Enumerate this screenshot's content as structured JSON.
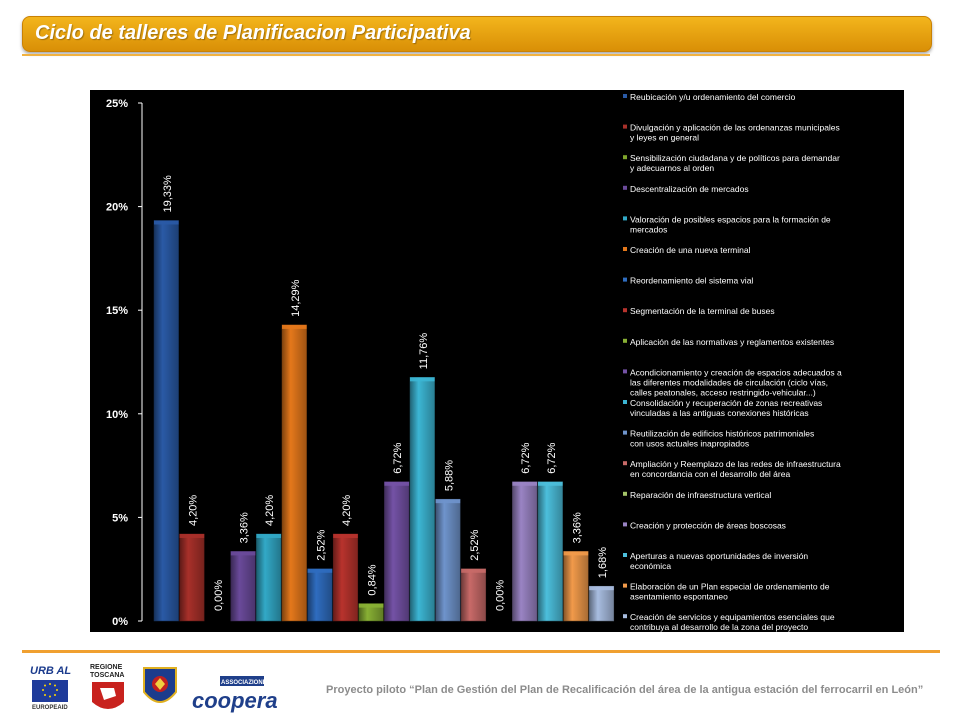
{
  "title": "Ciclo de talleres de Planificacion Participativa",
  "footer": {
    "prefix": "Proyecto piloto",
    "quote": "“Plan de Gestión del Plan de Recalificación del área de la antigua estación del ferrocarril en León”"
  },
  "logos": {
    "urbal": "URB AL",
    "europeaid": "EUROPEAID",
    "regione": "REGIONE",
    "toscana": "TOSCANA",
    "associazione": "ASSOCIAZIONE",
    "coopera": "coopera"
  },
  "colors": {
    "banner": "#e9a20f",
    "panel_bg": "#000000",
    "axis_text": "#ffffff",
    "blue": "#2a5aa6",
    "red": "#a8302a",
    "green": "#7fa52c",
    "purple": "#6a4a9a",
    "cyan": "#32a9c7",
    "orange": "#e4781b",
    "light_blue": "#6f94cc",
    "salmon": "#c86a68",
    "lavender": "#9a84c4",
    "light_orange": "#f19a4a",
    "pale_blue": "#a8bde0"
  },
  "chart_data": {
    "type": "bar",
    "ylim": [
      0,
      25
    ],
    "yticks": [
      "0%",
      "5%",
      "10%",
      "15%",
      "20%",
      "25%"
    ],
    "grid": false,
    "legend_position": "right",
    "series": [
      {
        "name": "Reubicación y/u ordenamiento del comercio",
        "value": 19.33,
        "label": "19,33%",
        "color": "#2a5aa6"
      },
      {
        "name": "Divulgación y aplicación de las ordenanzas municipales y leyes en general",
        "value": 4.2,
        "label": "4,20%",
        "color": "#a8302a"
      },
      {
        "name": "Sensibilización ciudadana y de políticos para demandar y adecuarnos al orden",
        "value": 0.0,
        "label": "0,00%",
        "color": "#7fa52c"
      },
      {
        "name": "Descentralización de mercados",
        "value": 3.36,
        "label": "3,36%",
        "color": "#6a4a9a"
      },
      {
        "name": "Valoración de posibles espacios para la formación de mercados",
        "value": 4.2,
        "label": "4,20%",
        "color": "#32a9c7"
      },
      {
        "name": "Creación de una nueva terminal",
        "value": 14.29,
        "label": "14,29%",
        "color": "#e4781b"
      },
      {
        "name": "Reordenamiento del sistema vial",
        "value": 2.52,
        "label": "2,52%",
        "color": "#2f6dc0"
      },
      {
        "name": "Segmentación de la terminal de buses",
        "value": 4.2,
        "label": "4,20%",
        "color": "#b8332d"
      },
      {
        "name": "Aplicación de las normativas y reglamentos existentes",
        "value": 0.84,
        "label": "0,84%",
        "color": "#88b034"
      },
      {
        "name": "Acondicionamiento y creación de espacios adecuados a las diferentes modalidades de circulación (ciclo vías, calles peatonales, acceso restringido-vehicular...)",
        "value": 6.72,
        "label": "6,72%",
        "color": "#7452a6"
      },
      {
        "name": "Consolidación y recuperación de zonas recreativas vinculadas a las antiguas conexiones históricas",
        "value": 11.76,
        "label": "11,76%",
        "color": "#3cb6d4"
      },
      {
        "name": "Reutilización de edificios históricos patrimoniales con usos actuales inapropiados",
        "value": 5.88,
        "label": "5,88%",
        "color": "#6f94cc"
      },
      {
        "name": "Ampliación y Reemplazo de las redes de infraestructura en concordancia con el desarrollo del área",
        "value": 2.52,
        "label": "2,52%",
        "color": "#c86a68"
      },
      {
        "name": "Reparación de infraestructura vertical",
        "value": 0.0,
        "label": "0,00%",
        "color": "#a4c468"
      },
      {
        "name": "Creación y protección de áreas boscosas",
        "value": 6.72,
        "label": "6,72%",
        "color": "#9a84c4"
      },
      {
        "name": "Aperturas a nuevas oportunidades de inversión económica",
        "value": 6.72,
        "label": "6,72%",
        "color": "#4cbfdc"
      },
      {
        "name": "Elaboración de un Plan especial de ordenamiento de asentamiento espontaneo",
        "value": 3.36,
        "label": "3,36%",
        "color": "#f19a4a"
      },
      {
        "name": "Creación de servicios y equipamientos esenciales que contribuya al desarrollo de la zona del proyecto",
        "value": 1.68,
        "label": "1,68%",
        "color": "#a8bde0"
      }
    ]
  }
}
